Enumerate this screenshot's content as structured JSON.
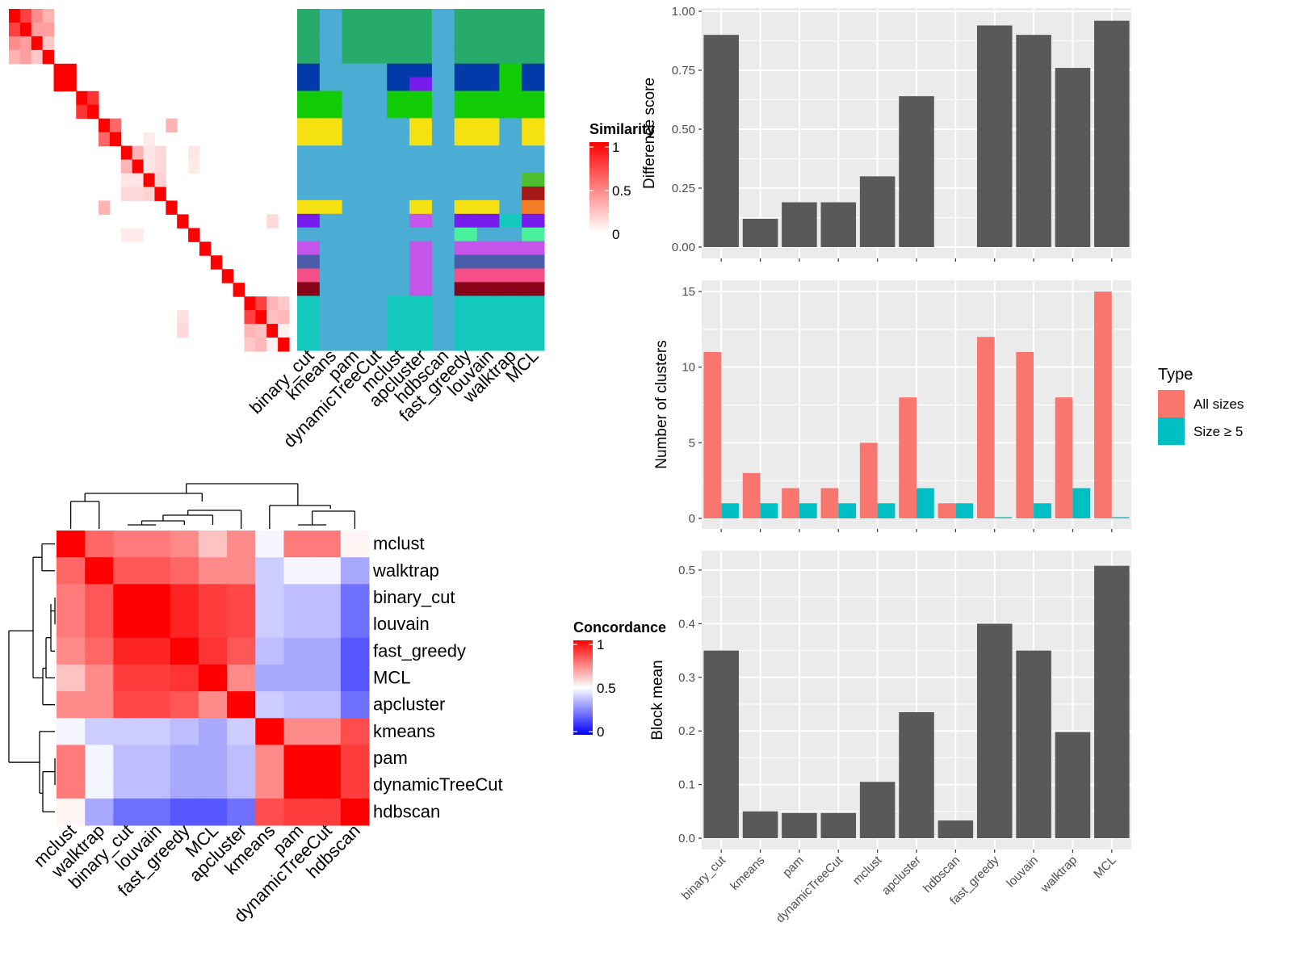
{
  "colors": {
    "bar_fill": "#595959",
    "panel_bg": "#ebebeb",
    "grid": "#ffffff",
    "all_sizes": "#f8766d",
    "size_ge_5": "#00bfc4",
    "heat_high": "#ff0000",
    "heat_mid": "#ffffff",
    "heat_low": "#0000ff"
  },
  "similarity_heatmap": {
    "legend_title": "Similarity",
    "legend_ticks": [
      "1",
      "0.5",
      "0"
    ],
    "size": 25,
    "blocks": [
      {
        "rows": [
          0,
          3
        ],
        "values": [
          [
            1,
            0.75,
            0.45,
            0.3
          ],
          [
            0.75,
            1,
            0.38,
            0.38
          ],
          [
            0.45,
            0.38,
            1,
            0.22
          ],
          [
            0.3,
            0.38,
            0.22,
            1
          ]
        ]
      },
      {
        "rows": [
          4,
          5
        ],
        "values": [
          [
            1,
            1
          ],
          [
            1,
            1
          ]
        ]
      },
      {
        "rows": [
          6,
          7
        ],
        "values": [
          [
            1,
            0.8
          ],
          [
            0.8,
            1
          ]
        ]
      },
      {
        "rows": [
          8,
          9
        ],
        "values": [
          [
            1,
            0.6
          ],
          [
            0.6,
            1
          ]
        ]
      },
      {
        "rows": [
          10,
          13
        ],
        "values": [
          [
            1,
            0.3,
            0.1,
            0.15
          ],
          [
            0.3,
            1,
            0.1,
            0.15
          ],
          [
            0.1,
            0.1,
            1,
            0.18
          ],
          [
            0.15,
            0.15,
            0.18,
            1
          ]
        ]
      },
      {
        "rows": [
          14,
          14
        ],
        "values": [
          [
            1
          ]
        ]
      },
      {
        "rows": [
          15,
          15
        ],
        "values": [
          [
            1
          ]
        ]
      },
      {
        "rows": [
          16,
          16
        ],
        "values": [
          [
            1
          ]
        ]
      },
      {
        "rows": [
          17,
          17
        ],
        "values": [
          [
            1
          ]
        ]
      },
      {
        "rows": [
          18,
          18
        ],
        "values": [
          [
            1
          ]
        ]
      },
      {
        "rows": [
          19,
          19
        ],
        "values": [
          [
            1
          ]
        ]
      },
      {
        "rows": [
          20,
          20
        ],
        "values": [
          [
            1
          ]
        ]
      },
      {
        "rows": [
          21,
          24
        ],
        "values": [
          [
            1,
            0.75,
            0.3,
            0.22
          ],
          [
            0.75,
            1,
            0.25,
            0.28
          ],
          [
            0.3,
            0.25,
            1,
            0.06
          ],
          [
            0.22,
            0.28,
            0.06,
            1
          ]
        ]
      }
    ],
    "off_diagonal": [
      {
        "r": 8,
        "c": 14,
        "v": 0.3
      },
      {
        "r": 14,
        "c": 8,
        "v": 0.3
      },
      {
        "r": 15,
        "c": 23,
        "v": 0.15
      },
      {
        "r": 23,
        "c": 15,
        "v": 0.15
      },
      {
        "r": 23,
        "c": 15,
        "v": 0.15
      },
      {
        "r": 10,
        "c": 16,
        "v": 0.1
      },
      {
        "r": 11,
        "c": 16,
        "v": 0.08
      },
      {
        "r": 9,
        "c": 12,
        "v": 0.08
      },
      {
        "r": 16,
        "c": 10,
        "v": 0.08
      },
      {
        "r": 16,
        "c": 11,
        "v": 0.08
      },
      {
        "r": 22,
        "c": 15,
        "v": 0.12
      }
    ]
  },
  "cluster_panel": {
    "columns": [
      "binary_cut",
      "kmeans",
      "pam",
      "dynamicTreeCut",
      "mclust",
      "apcluster",
      "hdbscan",
      "fast_greedy",
      "louvain",
      "walktrap",
      "MCL"
    ],
    "row_colors": [
      [
        "#27ab6a",
        "#4badd4",
        "#27ab6a",
        "#27ab6a",
        "#27ab6a",
        "#27ab6a",
        "#4badd4",
        "#27ab6a",
        "#27ab6a",
        "#27ab6a",
        "#27ab6a"
      ],
      [
        "#27ab6a",
        "#4badd4",
        "#27ab6a",
        "#27ab6a",
        "#27ab6a",
        "#27ab6a",
        "#4badd4",
        "#27ab6a",
        "#27ab6a",
        "#27ab6a",
        "#27ab6a"
      ],
      [
        "#27ab6a",
        "#4badd4",
        "#27ab6a",
        "#27ab6a",
        "#27ab6a",
        "#27ab6a",
        "#4badd4",
        "#27ab6a",
        "#27ab6a",
        "#27ab6a",
        "#27ab6a"
      ],
      [
        "#27ab6a",
        "#4badd4",
        "#27ab6a",
        "#27ab6a",
        "#27ab6a",
        "#27ab6a",
        "#4badd4",
        "#27ab6a",
        "#27ab6a",
        "#27ab6a",
        "#27ab6a"
      ],
      [
        "#0339a9",
        "#4badd4",
        "#4badd4",
        "#4badd4",
        "#0339a9",
        "#0339a9",
        "#4badd4",
        "#0339a9",
        "#0339a9",
        "#11cc06",
        "#0339a9"
      ],
      [
        "#0339a9",
        "#4badd4",
        "#4badd4",
        "#4badd4",
        "#0339a9",
        "#781ced",
        "#4badd4",
        "#0339a9",
        "#0339a9",
        "#11cc06",
        "#0339a9"
      ],
      [
        "#11cc06",
        "#11cc06",
        "#4badd4",
        "#4badd4",
        "#11cc06",
        "#11cc06",
        "#4badd4",
        "#11cc06",
        "#11cc06",
        "#11cc06",
        "#11cc06"
      ],
      [
        "#11cc06",
        "#11cc06",
        "#4badd4",
        "#4badd4",
        "#11cc06",
        "#11cc06",
        "#4badd4",
        "#11cc06",
        "#11cc06",
        "#11cc06",
        "#11cc06"
      ],
      [
        "#f5e012",
        "#f5e012",
        "#4badd4",
        "#4badd4",
        "#4badd4",
        "#f5e012",
        "#4badd4",
        "#f5e012",
        "#f5e012",
        "#4badd4",
        "#f5e012"
      ],
      [
        "#f5e012",
        "#f5e012",
        "#4badd4",
        "#4badd4",
        "#4badd4",
        "#f5e012",
        "#4badd4",
        "#f5e012",
        "#f5e012",
        "#4badd4",
        "#f5e012"
      ],
      [
        "#4badd4",
        "#4badd4",
        "#4badd4",
        "#4badd4",
        "#4badd4",
        "#4badd4",
        "#4badd4",
        "#4badd4",
        "#4badd4",
        "#4badd4",
        "#4badd4"
      ],
      [
        "#4badd4",
        "#4badd4",
        "#4badd4",
        "#4badd4",
        "#4badd4",
        "#4badd4",
        "#4badd4",
        "#4badd4",
        "#4badd4",
        "#4badd4",
        "#4badd4"
      ],
      [
        "#4badd4",
        "#4badd4",
        "#4badd4",
        "#4badd4",
        "#4badd4",
        "#4badd4",
        "#4badd4",
        "#4badd4",
        "#4badd4",
        "#4badd4",
        "#4dbf31"
      ],
      [
        "#4badd4",
        "#4badd4",
        "#4badd4",
        "#4badd4",
        "#4badd4",
        "#4badd4",
        "#4badd4",
        "#4badd4",
        "#4badd4",
        "#4badd4",
        "#a51818"
      ],
      [
        "#f5e012",
        "#f5e012",
        "#4badd4",
        "#4badd4",
        "#4badd4",
        "#f5e012",
        "#4badd4",
        "#f5e012",
        "#f5e012",
        "#4badd4",
        "#f47c24"
      ],
      [
        "#781ced",
        "#4badd4",
        "#4badd4",
        "#4badd4",
        "#4badd4",
        "#c554ea",
        "#4badd4",
        "#781ced",
        "#781ced",
        "#13c9bb",
        "#781ced"
      ],
      [
        "#4badd4",
        "#4badd4",
        "#4badd4",
        "#4badd4",
        "#4badd4",
        "#4badd4",
        "#4badd4",
        "#49f29a",
        "#4badd4",
        "#4badd4",
        "#49f29a"
      ],
      [
        "#c554ea",
        "#4badd4",
        "#4badd4",
        "#4badd4",
        "#4badd4",
        "#c554ea",
        "#4badd4",
        "#c554ea",
        "#c554ea",
        "#c554ea",
        "#c554ea"
      ],
      [
        "#4a5ba9",
        "#4badd4",
        "#4badd4",
        "#4badd4",
        "#4badd4",
        "#c554ea",
        "#4badd4",
        "#4a5ba9",
        "#4a5ba9",
        "#4a5ba9",
        "#4a5ba9"
      ],
      [
        "#f44f87",
        "#4badd4",
        "#4badd4",
        "#4badd4",
        "#4badd4",
        "#c554ea",
        "#4badd4",
        "#f44f87",
        "#f44f87",
        "#f44f87",
        "#f44f87"
      ],
      [
        "#860318",
        "#4badd4",
        "#4badd4",
        "#4badd4",
        "#4badd4",
        "#c554ea",
        "#4badd4",
        "#860318",
        "#860318",
        "#860318",
        "#860318"
      ],
      [
        "#12c9bb",
        "#4badd4",
        "#4badd4",
        "#4badd4",
        "#12c9bb",
        "#12c9bb",
        "#4badd4",
        "#12c9bb",
        "#12c9bb",
        "#12c9bb",
        "#12c9bb"
      ],
      [
        "#12c9bb",
        "#4badd4",
        "#4badd4",
        "#4badd4",
        "#12c9bb",
        "#12c9bb",
        "#4badd4",
        "#12c9bb",
        "#12c9bb",
        "#12c9bb",
        "#12c9bb"
      ],
      [
        "#12c9bb",
        "#4badd4",
        "#4badd4",
        "#4badd4",
        "#12c9bb",
        "#12c9bb",
        "#4badd4",
        "#12c9bb",
        "#12c9bb",
        "#12c9bb",
        "#12c9bb"
      ],
      [
        "#12c9bb",
        "#4badd4",
        "#4badd4",
        "#4badd4",
        "#12c9bb",
        "#12c9bb",
        "#4badd4",
        "#12c9bb",
        "#12c9bb",
        "#12c9bb",
        "#12c9bb"
      ]
    ]
  },
  "concordance_heatmap": {
    "legend_title": "Concordance",
    "legend_ticks": [
      "1",
      "0.5",
      "0"
    ],
    "labels": [
      "mclust",
      "walktrap",
      "binary_cut",
      "louvain",
      "fast_greedy",
      "MCL",
      "apcluster",
      "kmeans",
      "pam",
      "dynamicTreeCut",
      "hdbscan"
    ],
    "matrix": [
      [
        1.0,
        0.8,
        0.76,
        0.76,
        0.73,
        0.62,
        0.73,
        0.48,
        0.76,
        0.76,
        0.52
      ],
      [
        0.8,
        1.0,
        0.83,
        0.83,
        0.8,
        0.73,
        0.73,
        0.4,
        0.48,
        0.48,
        0.33
      ],
      [
        0.76,
        0.83,
        1.0,
        1.0,
        0.93,
        0.88,
        0.86,
        0.4,
        0.37,
        0.37,
        0.22
      ],
      [
        0.76,
        0.83,
        1.0,
        1.0,
        0.93,
        0.88,
        0.86,
        0.4,
        0.37,
        0.37,
        0.22
      ],
      [
        0.73,
        0.8,
        0.93,
        0.93,
        1.0,
        0.9,
        0.83,
        0.37,
        0.33,
        0.33,
        0.17
      ],
      [
        0.62,
        0.73,
        0.88,
        0.88,
        0.9,
        1.0,
        0.73,
        0.33,
        0.33,
        0.33,
        0.17
      ],
      [
        0.73,
        0.73,
        0.86,
        0.86,
        0.83,
        0.73,
        1.0,
        0.4,
        0.37,
        0.37,
        0.22
      ],
      [
        0.48,
        0.4,
        0.4,
        0.4,
        0.37,
        0.33,
        0.4,
        1.0,
        0.73,
        0.73,
        0.85
      ],
      [
        0.76,
        0.48,
        0.37,
        0.37,
        0.33,
        0.33,
        0.37,
        0.73,
        1.0,
        1.0,
        0.88
      ],
      [
        0.76,
        0.48,
        0.37,
        0.37,
        0.33,
        0.33,
        0.37,
        0.73,
        1.0,
        1.0,
        0.88
      ],
      [
        0.52,
        0.33,
        0.22,
        0.22,
        0.17,
        0.17,
        0.22,
        0.85,
        0.88,
        0.88,
        1.0
      ]
    ]
  },
  "type_legend": {
    "title": "Type",
    "items": [
      {
        "label": "All sizes",
        "color": "#f8766d"
      },
      {
        "label": "Size ≥ 5",
        "color": "#00bfc4"
      }
    ]
  },
  "chart_data": [
    {
      "type": "bar",
      "title": "",
      "xlabel": "",
      "ylabel": "Difference score",
      "categories": [
        "binary_cut",
        "kmeans",
        "pam",
        "dynamicTreeCut",
        "mclust",
        "apcluster",
        "hdbscan",
        "fast_greedy",
        "louvain",
        "walktrap",
        "MCL"
      ],
      "values": [
        0.9,
        0.12,
        0.19,
        0.19,
        0.3,
        0.64,
        0.0,
        0.94,
        0.9,
        0.76,
        0.96
      ],
      "ylim": [
        0,
        1.0
      ],
      "yticks": [
        "0.00",
        "0.25",
        "0.50",
        "0.75",
        "1.00"
      ],
      "ytick_values": [
        0,
        0.25,
        0.5,
        0.75,
        1.0
      ],
      "grid": true
    },
    {
      "type": "bar",
      "title": "",
      "xlabel": "",
      "ylabel": "Number of clusters",
      "categories": [
        "binary_cut",
        "kmeans",
        "pam",
        "dynamicTreeCut",
        "mclust",
        "apcluster",
        "hdbscan",
        "fast_greedy",
        "louvain",
        "walktrap",
        "MCL"
      ],
      "series": [
        {
          "name": "All sizes",
          "values": [
            11,
            3,
            2,
            2,
            5,
            8,
            1,
            12,
            11,
            8,
            15
          ]
        },
        {
          "name": "Size ≥ 5",
          "values": [
            1,
            1,
            1,
            1,
            1,
            2,
            1,
            0,
            1,
            2,
            0
          ]
        }
      ],
      "ylim": [
        0,
        15
      ],
      "yticks": [
        "0",
        "5",
        "10",
        "15"
      ],
      "ytick_values": [
        0,
        5,
        10,
        15
      ],
      "legend": {
        "title": "Type",
        "position": "right"
      },
      "grid": true
    },
    {
      "type": "bar",
      "title": "",
      "xlabel": "",
      "ylabel": "Block mean",
      "categories": [
        "binary_cut",
        "kmeans",
        "pam",
        "dynamicTreeCut",
        "mclust",
        "apcluster",
        "hdbscan",
        "fast_greedy",
        "louvain",
        "walktrap",
        "MCL"
      ],
      "values": [
        0.35,
        0.05,
        0.047,
        0.047,
        0.105,
        0.235,
        0.033,
        0.4,
        0.35,
        0.198,
        0.508
      ],
      "ylim": [
        0,
        0.5
      ],
      "yticks": [
        "0.0",
        "0.1",
        "0.2",
        "0.3",
        "0.4",
        "0.5"
      ],
      "ytick_values": [
        0,
        0.1,
        0.2,
        0.3,
        0.4,
        0.5
      ],
      "grid": true
    }
  ]
}
